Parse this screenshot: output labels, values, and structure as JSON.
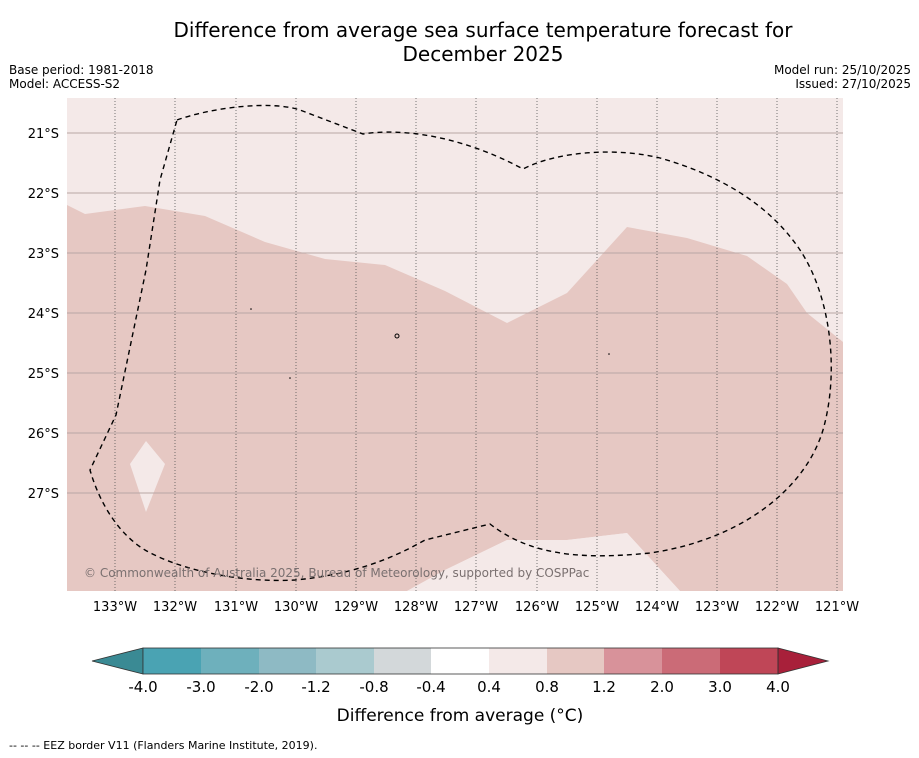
{
  "title_line1": "Difference from average sea surface temperature forecast for",
  "title_line2": "December 2025",
  "base_period": "Base period: 1981-2018",
  "model": "Model: ACCESS-S2",
  "model_run": "Model run: 25/10/2025",
  "issued": "Issued: 27/10/2025",
  "copyright": "© Commonwealth of Australia 2025, Bureau of Meteorology, supported by COSPPac",
  "footnote": "-- -- -- EEZ border V11 (Flanders Marine Institute, 2019).",
  "colors": {
    "band_04_08": "#f4e9e8",
    "band_08_12": "#e6c8c3",
    "eez": "#000000",
    "grid": "#555555"
  },
  "map": {
    "lon_ticks": [
      "133°W",
      "132°W",
      "131°W",
      "130°W",
      "129°W",
      "128°W",
      "127°W",
      "126°W",
      "125°W",
      "124°W",
      "123°W",
      "122°W",
      "121°W"
    ],
    "lat_ticks": [
      "21°S",
      "22°S",
      "23°S",
      "24°S",
      "25°S",
      "26°S",
      "27°S"
    ],
    "legend": [
      {
        "label": "0.4 to 0.8",
        "color": "#f4e9e8"
      },
      {
        "label": "0.8 to 1.2",
        "color": "#e6c8c3"
      }
    ]
  },
  "colorbar": {
    "label": "Difference from average (°C)",
    "ticks": [
      "-4.0",
      "-3.0",
      "-2.0",
      "-1.2",
      "-0.8",
      "-0.4",
      "0.4",
      "0.8",
      "1.2",
      "2.0",
      "3.0",
      "4.0"
    ],
    "colors": [
      "#4aa3b3",
      "#6eb0bc",
      "#8ebac4",
      "#aacacf",
      "#d3d8da",
      "#ffffff",
      "#f4e9e8",
      "#e6c8c3",
      "#d8929a",
      "#cb6b77",
      "#bf4657"
    ],
    "extend_low": "#3a8a94",
    "extend_high": "#a8203a"
  }
}
